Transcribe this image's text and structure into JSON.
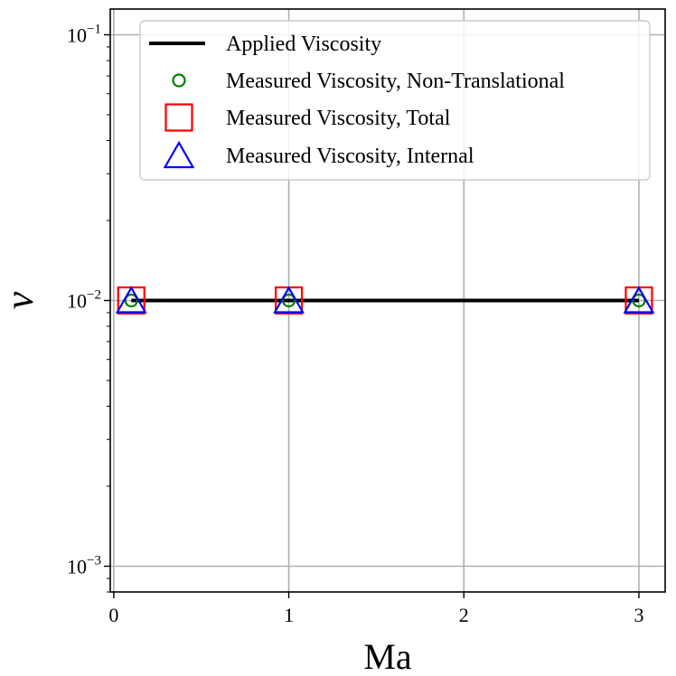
{
  "chart_data": {
    "type": "line",
    "xlabel": "Ma",
    "ylabel": "ν",
    "xlim": [
      -0.02,
      3.15
    ],
    "ylim": [
      0.0008,
      0.125
    ],
    "yscale": "log",
    "grid": true,
    "legend_position": "top-right",
    "x_ticks": [
      {
        "value": 0,
        "label": "0"
      },
      {
        "value": 1,
        "label": "1"
      },
      {
        "value": 2,
        "label": "2"
      },
      {
        "value": 3,
        "label": "3"
      }
    ],
    "y_ticks": [
      {
        "value": 0.001,
        "base": "10",
        "exp": "−3"
      },
      {
        "value": 0.01,
        "base": "10",
        "exp": "−2"
      },
      {
        "value": 0.1,
        "base": "10",
        "exp": "−1"
      }
    ],
    "series": [
      {
        "name": "Applied Viscosity",
        "marker": "line",
        "color": "#000000",
        "x": [
          0.1,
          3.0
        ],
        "y": [
          0.01,
          0.01
        ]
      },
      {
        "name": "Measured Viscosity, Non-Translational",
        "marker": "circle",
        "color": "#008000",
        "x": [
          0.1,
          1.0,
          3.0
        ],
        "y": [
          0.01,
          0.01,
          0.01
        ]
      },
      {
        "name": "Measured Viscosity, Total",
        "marker": "square",
        "color": "#ff0000",
        "x": [
          0.1,
          1.0,
          3.0
        ],
        "y": [
          0.01,
          0.01,
          0.01
        ]
      },
      {
        "name": "Measured Viscosity, Internal",
        "marker": "triangle",
        "color": "#0000ff",
        "x": [
          0.1,
          1.0,
          3.0
        ],
        "y": [
          0.01,
          0.01,
          0.01
        ]
      }
    ]
  }
}
